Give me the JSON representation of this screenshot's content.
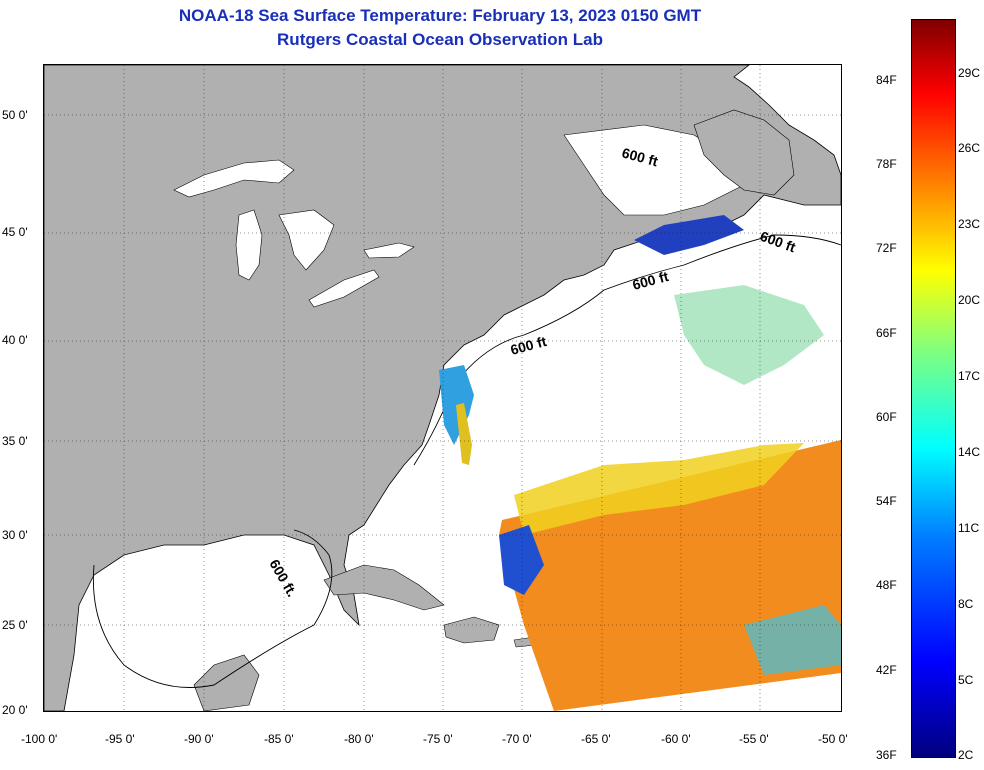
{
  "title": {
    "line1": "NOAA-18 Sea Surface Temperature:  February 13, 2023 0150 GMT",
    "line2": "Rutgers Coastal Ocean Observation Lab"
  },
  "map": {
    "lat_labels": [
      "50 0'",
      "45 0'",
      "40 0'",
      "35 0'",
      "30 0'",
      "25 0'",
      "20 0'"
    ],
    "lon_labels": [
      "-100 0'",
      "-95 0'",
      "-90 0'",
      "-85 0'",
      "-80 0'",
      "-75 0'",
      "-70 0'",
      "-65 0'",
      "-60 0'",
      "-55 0'",
      "-50 0'"
    ],
    "contour_label": "600 ft",
    "contour_label_alt": "600 ft.",
    "land_color": "#b0b0b0",
    "water_color": "#ffffff"
  },
  "colorbar": {
    "fahrenheit": [
      "84F",
      "78F",
      "72F",
      "66F",
      "60F",
      "54F",
      "48F",
      "42F",
      "36F"
    ],
    "celsius": [
      "29C",
      "26C",
      "23C",
      "20C",
      "17C",
      "14C",
      "11C",
      "8C",
      "5C",
      "2C"
    ],
    "colors": [
      "#00007f",
      "#0000ff",
      "#007fff",
      "#00ffff",
      "#7fff7f",
      "#ffff00",
      "#ff7f00",
      "#ff0000",
      "#7f0000"
    ]
  }
}
